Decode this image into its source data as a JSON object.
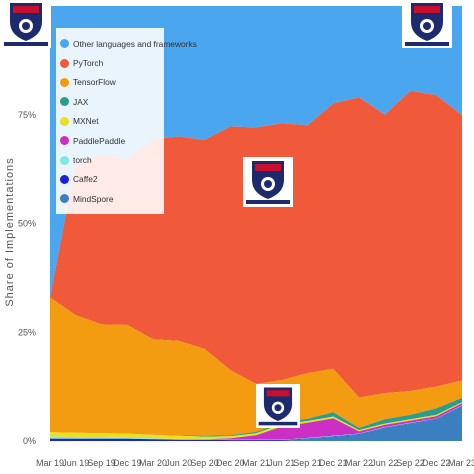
{
  "chart_data": {
    "type": "area",
    "stacked": true,
    "normalized": true,
    "ylabel": "Share of Implementations",
    "ylim": [
      0,
      100
    ],
    "yticks": [
      0,
      25,
      50,
      75
    ],
    "ytick_labels": [
      "0%",
      "25%",
      "50%",
      "75%"
    ],
    "grid": false,
    "legend_position": "top-left",
    "x": [
      "Mar 19",
      "Jun 19",
      "Sep 19",
      "Dec 19",
      "Mar 20",
      "Jun 20",
      "Sep 20",
      "Dec 20",
      "Mar 21",
      "Jun 21",
      "Sep 21",
      "Dec 21",
      "Mar 22",
      "Jun 22",
      "Sep 22",
      "Dec 22",
      "Mar 23"
    ],
    "series": [
      {
        "name": "MindSpore",
        "color": "#3a7fbf",
        "values": [
          0,
          0,
          0,
          0,
          0,
          0,
          0,
          0,
          0,
          0,
          0.5,
          1,
          1.5,
          3,
          4,
          5,
          8
        ]
      },
      {
        "name": "Caffe2",
        "color": "#1f1fd8",
        "values": [
          0.5,
          0.5,
          0.5,
          0.5,
          0.4,
          0.3,
          0.3,
          0.2,
          0.2,
          0.2,
          0.1,
          0.1,
          0.1,
          0.1,
          0.1,
          0.1,
          0.1
        ]
      },
      {
        "name": "torch",
        "color": "#7fe8e4",
        "values": [
          0.5,
          0.4,
          0.3,
          0.2,
          0.2,
          0.1,
          0.1,
          0.1,
          0.1,
          0.1,
          0.1,
          0.1,
          0.1,
          0.1,
          0.1,
          0.1,
          0.1
        ]
      },
      {
        "name": "PaddlePaddle",
        "color": "#cc2fc4",
        "values": [
          0,
          0,
          0,
          0,
          0,
          0,
          0,
          0.3,
          1,
          3,
          3.5,
          4,
          0.5,
          0.5,
          0.5,
          0.5,
          0.5
        ]
      },
      {
        "name": "MXNet",
        "color": "#e8e020",
        "values": [
          1,
          1,
          1,
          1,
          0.8,
          0.8,
          0.6,
          0.5,
          0.5,
          0.5,
          0.4,
          0.4,
          0.3,
          0.3,
          0.3,
          0.3,
          0.2
        ]
      },
      {
        "name": "JAX",
        "color": "#2a9d8f",
        "values": [
          0,
          0,
          0,
          0,
          0,
          0.1,
          0.2,
          0.2,
          0.3,
          0.4,
          0.5,
          1,
          0.5,
          1,
          1,
          1.5,
          1
        ]
      },
      {
        "name": "TensorFlow",
        "color": "#f39c12",
        "values": [
          31,
          27,
          25,
          25,
          22,
          21.7,
          20,
          15,
          11,
          9.8,
          10.5,
          10,
          7,
          6,
          5.5,
          5,
          4
        ]
      },
      {
        "name": "PyTorch",
        "color": "#f05a3a",
        "values": [
          0,
          35,
          39,
          38,
          46,
          47,
          48,
          56,
          59,
          59,
          57,
          61,
          69,
          64,
          69,
          67,
          61
        ]
      },
      {
        "name": "Other languages and frameworks",
        "color": "#4aa6ee",
        "values": [
          67,
          36.1,
          34.2,
          35.3,
          30.6,
          30,
          30.8,
          27.7,
          27.9,
          27,
          27.4,
          22.4,
          21,
          25,
          19.5,
          20.5,
          25.1
        ]
      }
    ]
  },
  "legend_order": [
    "Other languages and frameworks",
    "PyTorch",
    "TensorFlow",
    "JAX",
    "MXNet",
    "PaddlePaddle",
    "torch",
    "Caffe2",
    "MindSpore"
  ]
}
